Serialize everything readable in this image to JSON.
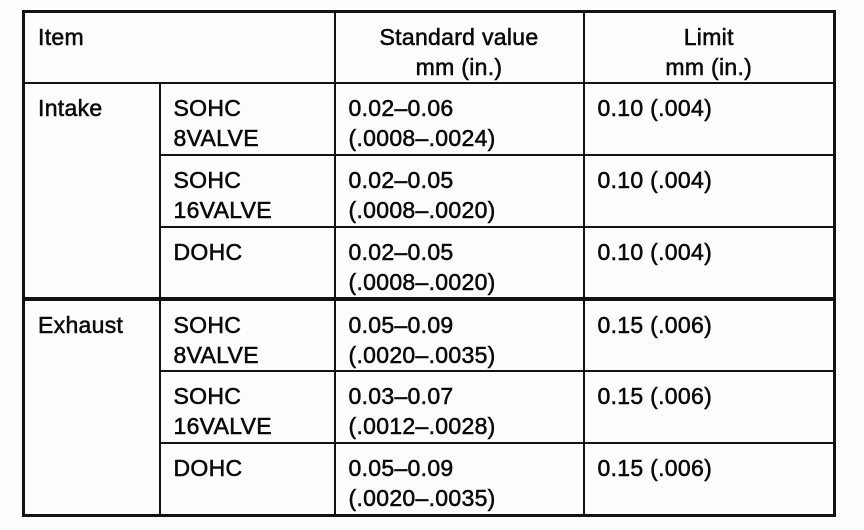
{
  "table": {
    "headers": {
      "item": "Item",
      "standard_value_line1": "Standard value",
      "standard_value_line2": "mm (in.)",
      "limit_line1": "Limit",
      "limit_line2": "mm (in.)"
    },
    "groups": [
      {
        "item": "Intake",
        "rows": [
          {
            "type_line1": "SOHC",
            "type_line2": "8VALVE",
            "standard_line1": "0.02–0.06",
            "standard_line2": "(.0008–.0024)",
            "limit": "0.10 (.004)"
          },
          {
            "type_line1": "SOHC",
            "type_line2": "16VALVE",
            "standard_line1": "0.02–0.05",
            "standard_line2": "(.0008–.0020)",
            "limit": "0.10 (.004)"
          },
          {
            "type_line1": "DOHC",
            "type_line2": "",
            "standard_line1": "0.02–0.05",
            "standard_line2": "(.0008–.0020)",
            "limit": "0.10 (.004)"
          }
        ]
      },
      {
        "item": "Exhaust",
        "rows": [
          {
            "type_line1": "SOHC",
            "type_line2": "8VALVE",
            "standard_line1": "0.05–0.09",
            "standard_line2": "(.0020–.0035)",
            "limit": "0.15 (.006)"
          },
          {
            "type_line1": "SOHC",
            "type_line2": "16VALVE",
            "standard_line1": "0.03–0.07",
            "standard_line2": "(.0012–.0028)",
            "limit": "0.15 (.006)"
          },
          {
            "type_line1": "DOHC",
            "type_line2": "",
            "standard_line1": "0.05–0.09",
            "standard_line2": "(.0020–.0035)",
            "limit": "0.15 (.006)"
          }
        ]
      }
    ]
  }
}
